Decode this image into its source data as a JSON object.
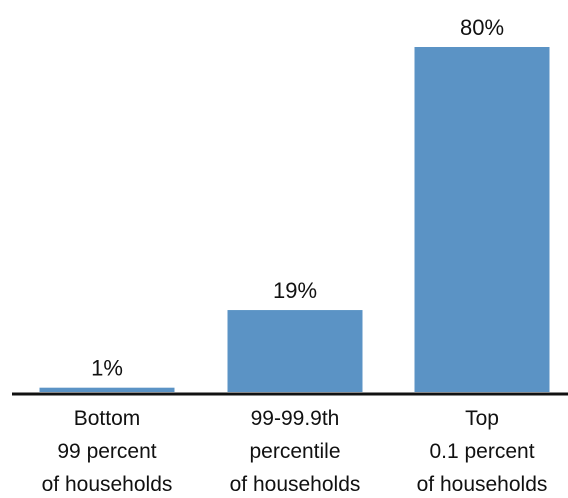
{
  "chart_data": {
    "type": "bar",
    "categories": [
      [
        "Bottom",
        "99 percent",
        "of households"
      ],
      [
        "99-99.9th",
        "percentile",
        "of households"
      ],
      [
        "Top",
        "0.1 percent",
        "of households"
      ]
    ],
    "values": [
      1,
      19,
      80
    ],
    "value_labels": [
      "1%",
      "19%",
      "80%"
    ],
    "ylim": [
      0,
      80
    ],
    "grid": false,
    "bar_color": "#5b93c5",
    "axis_color": "#111111",
    "title": "",
    "xlabel": "",
    "ylabel": ""
  }
}
